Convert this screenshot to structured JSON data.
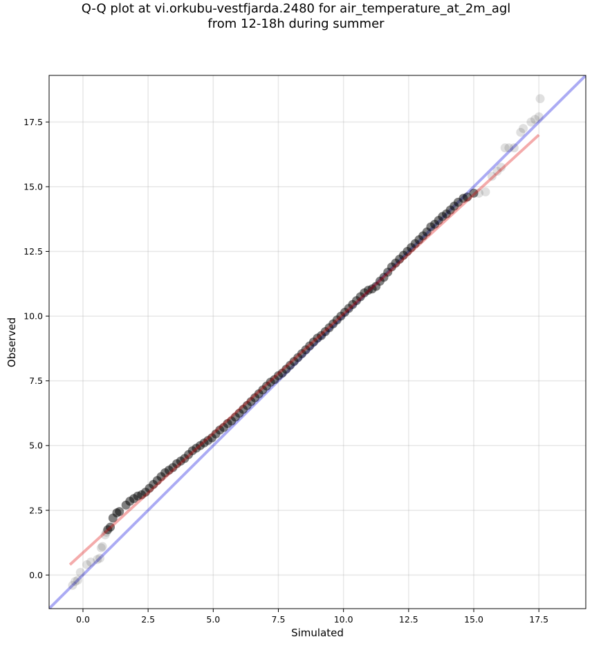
{
  "title_line1": "Q-Q plot at vi.orkubu-vestfjarda.2480 for air_temperature_at_2m_agl",
  "title_line2": "from 12-18h during summer",
  "chart_data": {
    "type": "scatter",
    "title": "Q-Q plot at vi.orkubu-vestfjarda.2480 for air_temperature_at_2m_agl from 12-18h during summer",
    "xlabel": "Simulated",
    "ylabel": "Observed",
    "xlim": [
      -1.3,
      19.3
    ],
    "ylim": [
      -1.3,
      19.3
    ],
    "xticks": [
      0.0,
      2.5,
      5.0,
      7.5,
      10.0,
      12.5,
      15.0,
      17.5
    ],
    "yticks": [
      0.0,
      2.5,
      5.0,
      7.5,
      10.0,
      12.5,
      15.0,
      17.5
    ],
    "xtick_labels": [
      "0.0",
      "2.5",
      "5.0",
      "7.5",
      "10.0",
      "12.5",
      "15.0",
      "17.5"
    ],
    "ytick_labels": [
      "0.0",
      "2.5",
      "5.0",
      "7.5",
      "10.0",
      "12.5",
      "15.0",
      "17.5"
    ],
    "grid": true,
    "reference_line": {
      "x": [
        -1.3,
        19.3
      ],
      "y": [
        -1.3,
        19.3
      ],
      "color": "#0000dd"
    },
    "fit_line": {
      "x": [
        -0.5,
        17.5
      ],
      "y": [
        0.4,
        17.0
      ],
      "color": "#dd0000"
    },
    "points_color": "#000000",
    "points": [
      [
        -0.4,
        -0.4
      ],
      [
        -0.3,
        -0.25
      ],
      [
        -0.2,
        -0.2
      ],
      [
        -0.1,
        0.1
      ],
      [
        0.15,
        0.4
      ],
      [
        0.3,
        0.5
      ],
      [
        0.55,
        0.6
      ],
      [
        0.65,
        0.65
      ],
      [
        0.7,
        1.05
      ],
      [
        0.75,
        1.1
      ],
      [
        0.85,
        1.55
      ],
      [
        0.9,
        1.65
      ],
      [
        0.95,
        1.75
      ],
      [
        1.05,
        1.85
      ],
      [
        1.15,
        2.2
      ],
      [
        1.3,
        2.4
      ],
      [
        1.4,
        2.45
      ],
      [
        1.65,
        2.7
      ],
      [
        1.8,
        2.85
      ],
      [
        1.95,
        2.95
      ],
      [
        2.1,
        3.05
      ],
      [
        2.25,
        3.1
      ],
      [
        2.4,
        3.2
      ],
      [
        2.55,
        3.35
      ],
      [
        2.7,
        3.5
      ],
      [
        2.85,
        3.65
      ],
      [
        3.0,
        3.8
      ],
      [
        3.15,
        3.95
      ],
      [
        3.3,
        4.05
      ],
      [
        3.45,
        4.15
      ],
      [
        3.6,
        4.3
      ],
      [
        3.75,
        4.4
      ],
      [
        3.9,
        4.5
      ],
      [
        4.05,
        4.65
      ],
      [
        4.2,
        4.8
      ],
      [
        4.35,
        4.9
      ],
      [
        4.5,
        5.0
      ],
      [
        4.65,
        5.1
      ],
      [
        4.8,
        5.2
      ],
      [
        4.95,
        5.3
      ],
      [
        5.1,
        5.45
      ],
      [
        5.25,
        5.6
      ],
      [
        5.4,
        5.7
      ],
      [
        5.55,
        5.85
      ],
      [
        5.7,
        5.95
      ],
      [
        5.85,
        6.1
      ],
      [
        6.0,
        6.25
      ],
      [
        6.15,
        6.4
      ],
      [
        6.3,
        6.55
      ],
      [
        6.45,
        6.7
      ],
      [
        6.6,
        6.85
      ],
      [
        6.75,
        7.0
      ],
      [
        6.9,
        7.15
      ],
      [
        7.05,
        7.3
      ],
      [
        7.2,
        7.45
      ],
      [
        7.35,
        7.55
      ],
      [
        7.5,
        7.7
      ],
      [
        7.65,
        7.8
      ],
      [
        7.8,
        7.95
      ],
      [
        7.95,
        8.1
      ],
      [
        8.1,
        8.25
      ],
      [
        8.25,
        8.4
      ],
      [
        8.4,
        8.55
      ],
      [
        8.55,
        8.7
      ],
      [
        8.7,
        8.85
      ],
      [
        8.85,
        9.0
      ],
      [
        9.0,
        9.15
      ],
      [
        9.15,
        9.25
      ],
      [
        9.3,
        9.4
      ],
      [
        9.45,
        9.55
      ],
      [
        9.6,
        9.7
      ],
      [
        9.75,
        9.85
      ],
      [
        9.9,
        10.0
      ],
      [
        10.05,
        10.15
      ],
      [
        10.2,
        10.3
      ],
      [
        10.35,
        10.45
      ],
      [
        10.5,
        10.6
      ],
      [
        10.65,
        10.75
      ],
      [
        10.8,
        10.9
      ],
      [
        10.95,
        11.0
      ],
      [
        11.1,
        11.05
      ],
      [
        11.25,
        11.15
      ],
      [
        11.4,
        11.35
      ],
      [
        11.55,
        11.5
      ],
      [
        11.7,
        11.7
      ],
      [
        11.85,
        11.9
      ],
      [
        12.0,
        12.05
      ],
      [
        12.15,
        12.2
      ],
      [
        12.3,
        12.35
      ],
      [
        12.45,
        12.5
      ],
      [
        12.6,
        12.65
      ],
      [
        12.75,
        12.8
      ],
      [
        12.9,
        12.95
      ],
      [
        13.05,
        13.1
      ],
      [
        13.2,
        13.25
      ],
      [
        13.35,
        13.45
      ],
      [
        13.5,
        13.55
      ],
      [
        13.65,
        13.7
      ],
      [
        13.8,
        13.85
      ],
      [
        13.95,
        13.95
      ],
      [
        14.1,
        14.1
      ],
      [
        14.25,
        14.25
      ],
      [
        14.4,
        14.4
      ],
      [
        14.6,
        14.55
      ],
      [
        14.75,
        14.6
      ],
      [
        15.0,
        14.75
      ],
      [
        15.2,
        14.75
      ],
      [
        15.45,
        14.8
      ],
      [
        15.7,
        15.4
      ],
      [
        15.9,
        15.6
      ],
      [
        16.05,
        15.75
      ],
      [
        16.2,
        16.5
      ],
      [
        16.35,
        16.5
      ],
      [
        16.55,
        16.5
      ],
      [
        16.8,
        17.1
      ],
      [
        16.9,
        17.25
      ],
      [
        17.2,
        17.5
      ],
      [
        17.35,
        17.6
      ],
      [
        17.5,
        17.7
      ],
      [
        17.55,
        18.4
      ]
    ]
  }
}
